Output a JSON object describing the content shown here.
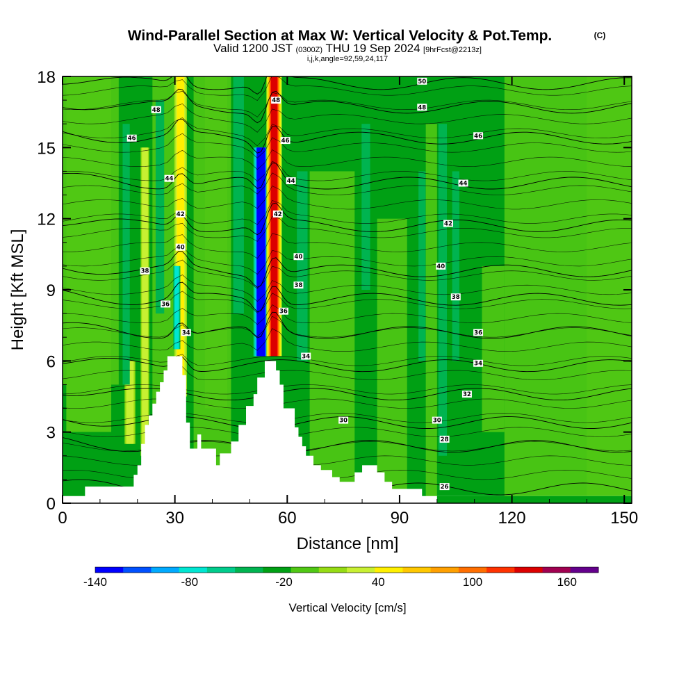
{
  "chart_data": {
    "type": "heatmap",
    "title": "Wind-Parallel Section at Max W: Vertical Velocity & Pot.Temp.",
    "copyright_mark": "(C)",
    "subtitle": {
      "valid_prefix": "Valid 1200 JST",
      "utc": "(0300Z)",
      "date": "THU 19 Sep 2024",
      "forecast": "[9hrFcst@2213z]"
    },
    "grid_info": "i,j,k,angle=92,59,24,117",
    "xlabel": "Distance [nm]",
    "ylabel": "Height [Kft MSL]",
    "xlim": [
      0,
      152
    ],
    "ylim": [
      0,
      18
    ],
    "x_ticks": [
      0,
      30,
      60,
      90,
      120,
      150
    ],
    "x_tick_labels": [
      "0",
      "30",
      "60",
      "90",
      "120",
      "150"
    ],
    "y_ticks": [
      0,
      3,
      6,
      9,
      12,
      15,
      18
    ],
    "y_tick_labels": [
      "0",
      "3",
      "6",
      "9",
      "12",
      "15",
      "18"
    ],
    "colorbar": {
      "label": "Vertical Velocity [cm/s]",
      "min": -140,
      "max": 180,
      "step": 20,
      "tick_labels": [
        "-140",
        "-80",
        "-20",
        "40",
        "100",
        "160"
      ],
      "colors": [
        "#0000ff",
        "#0050ff",
        "#00aaff",
        "#00e6d2",
        "#00cc8c",
        "#00b450",
        "#00a014",
        "#50c814",
        "#96dc14",
        "#c8f032",
        "#fff000",
        "#ffc800",
        "#ffa000",
        "#ff6e00",
        "#ff3200",
        "#dc0000",
        "#a00050",
        "#64008c"
      ]
    },
    "terrain_profile": {
      "x": [
        0,
        5,
        6,
        18,
        19,
        20,
        21,
        22,
        23,
        24,
        25,
        26,
        27,
        28,
        31,
        32,
        33,
        34,
        36,
        37,
        39,
        41,
        42,
        45,
        47,
        49,
        51,
        52,
        54,
        56,
        57,
        58,
        59,
        60,
        62,
        63,
        64,
        65,
        67,
        69,
        70,
        72,
        74,
        76,
        78,
        80,
        82,
        84,
        86,
        88,
        90,
        92,
        94,
        96,
        98,
        100,
        152
      ],
      "height": [
        0.3,
        0.3,
        0.7,
        0.7,
        1.2,
        1.6,
        2.5,
        3.3,
        3.7,
        4.2,
        4.7,
        5.1,
        5.6,
        6.2,
        6.2,
        5.4,
        3.4,
        2.3,
        2.9,
        2.3,
        2.3,
        1.6,
        2.1,
        2.6,
        3.3,
        4.1,
        4.6,
        5.3,
        6.0,
        6.0,
        5.6,
        5.0,
        4.0,
        4.0,
        3.2,
        2.8,
        2.4,
        2.0,
        1.6,
        1.4,
        1.4,
        1.1,
        0.9,
        0.9,
        1.3,
        1.6,
        1.6,
        1.3,
        0.9,
        0.6,
        0.6,
        0.6,
        0.6,
        0.3,
        0.3,
        0.3,
        0.3
      ]
    },
    "w_features": [
      {
        "x": 31.5,
        "width": 1.8,
        "z_bottom": 4.5,
        "z_top": 18,
        "value": 70,
        "sign": "up"
      },
      {
        "x": 30.5,
        "width": 1.0,
        "z_bottom": 6.5,
        "z_top": 10,
        "value": -70,
        "sign": "down"
      },
      {
        "x": 53.0,
        "width": 2.2,
        "z_bottom": 6.2,
        "z_top": 15,
        "value": -140,
        "sign": "down"
      },
      {
        "x": 56.5,
        "width": 2.2,
        "z_bottom": 6.2,
        "z_top": 18,
        "value": 170,
        "sign": "up"
      },
      {
        "x": 18.0,
        "width": 1.5,
        "z_bottom": 2.5,
        "z_top": 6,
        "value": 55,
        "sign": "up"
      },
      {
        "x": 22.0,
        "width": 1.2,
        "z_bottom": 2.0,
        "z_top": 15,
        "value": 40,
        "sign": "up"
      },
      {
        "x": 17.0,
        "width": 1.0,
        "z_bottom": 5,
        "z_top": 16,
        "value": -25,
        "sign": "down"
      },
      {
        "x": 26.0,
        "width": 1.2,
        "z_bottom": 8,
        "z_top": 17,
        "value": -30,
        "sign": "down"
      },
      {
        "x": 47.0,
        "width": 1.5,
        "z_bottom": 8,
        "z_top": 18,
        "value": -30,
        "sign": "down"
      },
      {
        "x": 64.0,
        "width": 1.5,
        "z_bottom": 6,
        "z_top": 14,
        "value": -25,
        "sign": "down"
      },
      {
        "x": 101.5,
        "width": 1.2,
        "z_bottom": 2,
        "z_top": 16,
        "value": -30,
        "sign": "down"
      },
      {
        "x": 105.0,
        "width": 1.0,
        "z_bottom": 6,
        "z_top": 14,
        "value": -20,
        "sign": "down"
      },
      {
        "x": 81.0,
        "width": 1.2,
        "z_bottom": 9,
        "z_top": 16,
        "value": -20,
        "sign": "down"
      },
      {
        "x": 96.0,
        "width": 1.0,
        "z_bottom": 6,
        "z_top": 14,
        "value": -20,
        "sign": "down"
      }
    ],
    "theta_contours": [
      {
        "label": "26",
        "z_base": 0.6,
        "label_pos": [
          102,
          0.7
        ]
      },
      {
        "label": "28",
        "z_base": 2.4,
        "label_pos": [
          102,
          2.7
        ]
      },
      {
        "label": "30",
        "z_base": 3.4,
        "label_pos": [
          75,
          3.5
        ]
      },
      {
        "label": "32",
        "z_base": 4.6,
        "label_pos": [
          108,
          4.6
        ]
      },
      {
        "label": "34",
        "z_base": 5.8,
        "label_pos": [
          111,
          5.9
        ]
      },
      {
        "label": "36",
        "z_base": 7.2,
        "label_pos": [
          111,
          7.2
        ]
      },
      {
        "label": "38",
        "z_base": 8.6,
        "label_pos": [
          105,
          8.7
        ]
      },
      {
        "label": "40",
        "z_base": 9.8,
        "label_pos": [
          101,
          10.0
        ]
      },
      {
        "label": "42",
        "z_base": 11.7,
        "label_pos": [
          103,
          11.8
        ]
      },
      {
        "label": "44",
        "z_base": 13.5,
        "label_pos": [
          107,
          13.5
        ]
      },
      {
        "label": "46",
        "z_base": 15.4,
        "label_pos": [
          111,
          15.5
        ]
      },
      {
        "label": "48",
        "z_base": 16.7,
        "label_pos": [
          96,
          16.7
        ]
      },
      {
        "label": "50",
        "z_base": 17.7,
        "label_pos": [
          96,
          17.8
        ]
      }
    ],
    "extra_contour_labels": [
      {
        "label": "48",
        "pos": [
          25,
          16.6
        ]
      },
      {
        "label": "46",
        "pos": [
          18.5,
          15.4
        ]
      },
      {
        "label": "44",
        "pos": [
          28.5,
          13.7
        ]
      },
      {
        "label": "42",
        "pos": [
          31.5,
          12.2
        ]
      },
      {
        "label": "40",
        "pos": [
          31.5,
          10.8
        ]
      },
      {
        "label": "38",
        "pos": [
          22,
          9.8
        ]
      },
      {
        "label": "36",
        "pos": [
          27.5,
          8.4
        ]
      },
      {
        "label": "34",
        "pos": [
          33,
          7.2
        ]
      },
      {
        "label": "48",
        "pos": [
          57,
          17.0
        ]
      },
      {
        "label": "46",
        "pos": [
          59.5,
          15.3
        ]
      },
      {
        "label": "44",
        "pos": [
          61,
          13.6
        ]
      },
      {
        "label": "42",
        "pos": [
          57.5,
          12.2
        ]
      },
      {
        "label": "40",
        "pos": [
          63,
          10.4
        ]
      },
      {
        "label": "38",
        "pos": [
          63,
          9.2
        ]
      },
      {
        "label": "36",
        "pos": [
          59,
          8.1
        ]
      },
      {
        "label": "34",
        "pos": [
          65,
          6.2
        ]
      },
      {
        "label": "30",
        "pos": [
          100,
          3.5
        ]
      }
    ]
  }
}
